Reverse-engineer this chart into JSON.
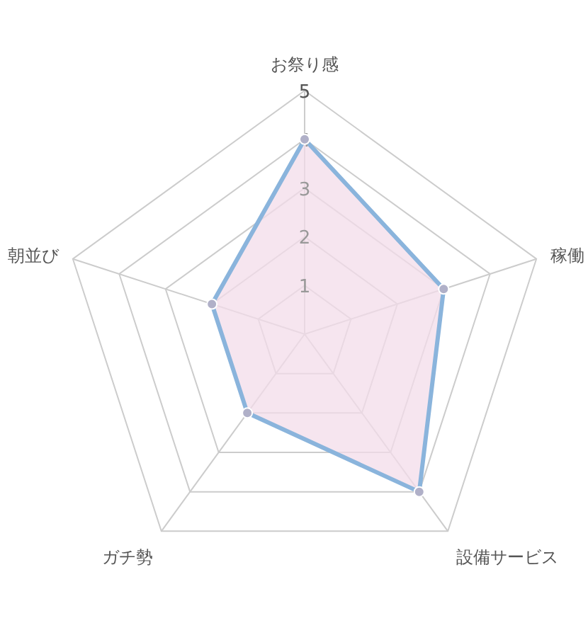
{
  "chart_data": {
    "type": "radar",
    "categories": [
      "お祭り感",
      "稼働",
      "設備サービス",
      "ガチ勢",
      "朝並び"
    ],
    "series": [
      {
        "color": "#8ab4dc",
        "values": [
          4,
          3,
          4,
          2,
          2
        ]
      }
    ],
    "ylim": [
      0,
      5
    ],
    "yticks": [
      1,
      2,
      3,
      4,
      5
    ],
    "grid": true,
    "marker": "circle"
  }
}
